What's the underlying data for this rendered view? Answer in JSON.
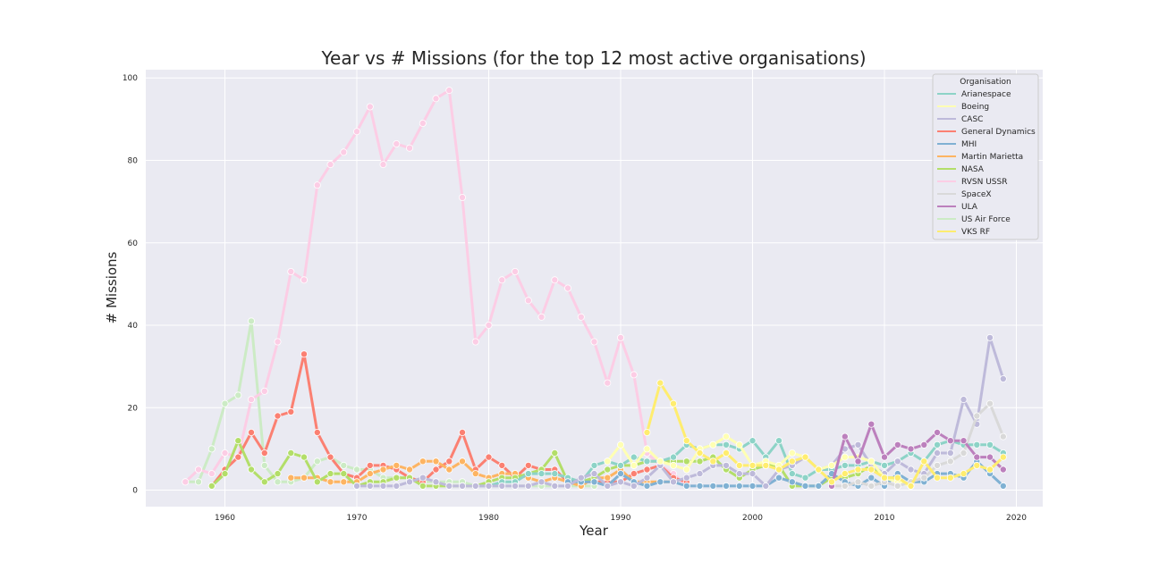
{
  "chart_data": {
    "type": "line",
    "title": "Year vs # Missions (for the top 12 most active organisations)",
    "xlabel": "Year",
    "ylabel": "# Missions",
    "xlim": [
      1954,
      2022
    ],
    "ylim": [
      -4,
      102
    ],
    "xticks": [
      1960,
      1970,
      1980,
      1990,
      2000,
      2010,
      2020
    ],
    "yticks": [
      0,
      20,
      40,
      60,
      80,
      100
    ],
    "grid": true,
    "legend_title": "Organisation",
    "legend_position": "top-right",
    "series": [
      {
        "name": "US Air Force",
        "color": "#ccebc5",
        "x": [
          1957,
          1958,
          1959,
          1960,
          1961,
          1962,
          1963,
          1964,
          1965,
          1966,
          1967,
          1968,
          1969,
          1970,
          1971,
          1972,
          1973,
          1974,
          1975,
          1976,
          1977,
          1978,
          1979,
          1980,
          1981,
          1982,
          1983,
          1984,
          1985,
          1986,
          1987,
          1988
        ],
        "y": [
          2,
          2,
          10,
          21,
          23,
          41,
          6,
          2,
          2,
          3,
          7,
          8,
          6,
          5,
          5,
          3,
          3,
          3,
          2,
          2,
          2,
          2,
          1,
          1,
          1,
          1,
          1,
          1,
          1,
          1,
          1,
          1
        ]
      },
      {
        "name": "RVSN USSR",
        "color": "#fccde5",
        "x": [
          1957,
          1958,
          1959,
          1960,
          1961,
          1962,
          1963,
          1964,
          1965,
          1966,
          1967,
          1968,
          1969,
          1970,
          1971,
          1972,
          1973,
          1974,
          1975,
          1976,
          1977,
          1978,
          1979,
          1980,
          1981,
          1982,
          1983,
          1984,
          1985,
          1986,
          1987,
          1988,
          1989,
          1990,
          1991,
          1992,
          1993,
          1994,
          1995,
          1996,
          1997,
          1998
        ],
        "y": [
          2,
          5,
          4,
          9,
          8,
          22,
          24,
          36,
          53,
          51,
          74,
          79,
          82,
          87,
          93,
          79,
          84,
          83,
          89,
          95,
          97,
          71,
          36,
          40,
          51,
          53,
          46,
          42,
          51,
          49,
          42,
          36,
          26,
          37,
          28,
          9,
          6,
          4,
          1,
          1,
          1,
          1
        ]
      },
      {
        "name": "General Dynamics",
        "color": "#fb8072",
        "x": [
          1959,
          1960,
          1961,
          1962,
          1963,
          1964,
          1965,
          1966,
          1967,
          1968,
          1969,
          1970,
          1971,
          1972,
          1973,
          1974,
          1975,
          1976,
          1977,
          1978,
          1979,
          1980,
          1981,
          1982,
          1983,
          1984,
          1985,
          1986,
          1987,
          1988,
          1989,
          1990,
          1991,
          1992,
          1993,
          1994,
          1995
        ],
        "y": [
          1,
          5,
          8,
          14,
          9,
          18,
          19,
          33,
          14,
          8,
          4,
          3,
          6,
          6,
          5,
          3,
          2,
          5,
          7,
          14,
          5,
          8,
          6,
          3,
          6,
          5,
          5,
          2,
          2,
          2,
          2,
          2,
          4,
          5,
          6,
          3,
          2
        ]
      },
      {
        "name": "Martin Marietta",
        "color": "#fdb462",
        "x": [
          1965,
          1966,
          1967,
          1968,
          1969,
          1970,
          1971,
          1972,
          1973,
          1974,
          1975,
          1976,
          1977,
          1978,
          1979,
          1980,
          1981,
          1982,
          1983,
          1984,
          1985,
          1986,
          1987,
          1988,
          1989,
          1990,
          1991,
          1992,
          1993,
          1994
        ],
        "y": [
          3,
          3,
          3,
          2,
          2,
          2,
          4,
          5,
          6,
          5,
          7,
          7,
          5,
          7,
          4,
          3,
          4,
          4,
          3,
          2,
          3,
          2,
          1,
          3,
          3,
          5,
          2,
          2,
          2,
          2
        ]
      },
      {
        "name": "NASA",
        "color": "#b3de69",
        "x": [
          1959,
          1960,
          1961,
          1962,
          1963,
          1964,
          1965,
          1966,
          1967,
          1968,
          1969,
          1970,
          1971,
          1972,
          1973,
          1974,
          1975,
          1976,
          1977,
          1978,
          1979,
          1980,
          1981,
          1982,
          1983,
          1984,
          1985,
          1986,
          1987,
          1988,
          1989,
          1990,
          1991,
          1992,
          1993,
          1994,
          1995,
          1996,
          1997,
          1998,
          1999,
          2000,
          2001,
          2002,
          2003,
          2004,
          2005,
          2006,
          2007,
          2008,
          2009,
          2010,
          2011
        ],
        "y": [
          1,
          4,
          12,
          5,
          2,
          4,
          9,
          8,
          2,
          4,
          4,
          1,
          2,
          2,
          3,
          3,
          1,
          1,
          1,
          1,
          1,
          2,
          3,
          3,
          4,
          5,
          9,
          2,
          2,
          3,
          5,
          6,
          6,
          7,
          7,
          7,
          7,
          7,
          8,
          5,
          3,
          5,
          6,
          6,
          1,
          1,
          1,
          3,
          3,
          4,
          6,
          3,
          3
        ]
      },
      {
        "name": "Arianespace",
        "color": "#8dd3c7",
        "x": [
          1979,
          1980,
          1981,
          1982,
          1983,
          1984,
          1985,
          1986,
          1987,
          1988,
          1989,
          1990,
          1991,
          1992,
          1993,
          1994,
          1995,
          1996,
          1997,
          1998,
          1999,
          2000,
          2001,
          2002,
          2003,
          2004,
          2005,
          2006,
          2007,
          2008,
          2009,
          2010,
          2011,
          2012,
          2013,
          2014,
          2015,
          2016,
          2017,
          2018,
          2019
        ],
        "y": [
          1,
          1,
          2,
          2,
          4,
          4,
          4,
          3,
          2,
          6,
          7,
          6,
          8,
          7,
          7,
          8,
          11,
          10,
          11,
          11,
          10,
          12,
          8,
          12,
          4,
          3,
          5,
          5,
          6,
          6,
          7,
          6,
          7,
          9,
          7,
          11,
          12,
          11,
          11,
          11,
          9
        ]
      },
      {
        "name": "MHI",
        "color": "#80b1d3",
        "x": [
          1986,
          1987,
          1988,
          1989,
          1990,
          1991,
          1992,
          1993,
          1994,
          1995,
          1996,
          1997,
          1998,
          1999,
          2000,
          2001,
          2002,
          2003,
          2004,
          2005,
          2006,
          2007,
          2008,
          2009,
          2010,
          2011,
          2012,
          2013,
          2014,
          2015,
          2016,
          2017,
          2018,
          2019
        ],
        "y": [
          2,
          2,
          2,
          1,
          4,
          2,
          1,
          2,
          2,
          1,
          1,
          1,
          1,
          1,
          1,
          1,
          3,
          2,
          1,
          1,
          4,
          2,
          1,
          3,
          1,
          4,
          2,
          2,
          4,
          4,
          3,
          7,
          4,
          1
        ]
      },
      {
        "name": "CASC",
        "color": "#bebada",
        "x": [
          1970,
          1971,
          1972,
          1973,
          1974,
          1975,
          1976,
          1977,
          1978,
          1979,
          1980,
          1981,
          1982,
          1983,
          1984,
          1985,
          1986,
          1987,
          1988,
          1989,
          1990,
          1991,
          1992,
          1993,
          1994,
          1995,
          1996,
          1997,
          1998,
          1999,
          2000,
          2001,
          2002,
          2003,
          2004,
          2005,
          2006,
          2007,
          2008,
          2009,
          2010,
          2011,
          2012,
          2013,
          2014,
          2015,
          2016,
          2017,
          2018,
          2019
        ],
        "y": [
          1,
          1,
          1,
          1,
          2,
          3,
          2,
          1,
          1,
          1,
          1,
          1,
          1,
          1,
          2,
          1,
          1,
          3,
          4,
          1,
          2,
          1,
          3,
          6,
          2,
          3,
          4,
          6,
          6,
          4,
          4,
          1,
          5,
          6,
          8,
          5,
          6,
          10,
          11,
          6,
          4,
          7,
          5,
          4,
          9,
          9,
          22,
          16,
          37,
          27
        ]
      },
      {
        "name": "Boeing",
        "color": "#ffffb3",
        "x": [
          1989,
          1990,
          1991,
          1992,
          1993,
          1994,
          1995,
          1996,
          1997,
          1998,
          1999,
          2000,
          2001,
          2002,
          2003,
          2004,
          2005,
          2006,
          2007,
          2008,
          2009,
          2010,
          2011,
          2012
        ],
        "y": [
          7,
          11,
          6,
          10,
          7,
          6,
          5,
          10,
          11,
          13,
          11,
          6,
          7,
          6,
          9,
          8,
          5,
          6,
          8,
          8,
          7,
          3,
          2,
          1
        ]
      },
      {
        "name": "SpaceX",
        "color": "#d9d9d9",
        "x": [
          2006,
          2007,
          2008,
          2009,
          2010,
          2011,
          2012,
          2013,
          2014,
          2015,
          2016,
          2017,
          2018,
          2019
        ],
        "y": [
          1,
          1,
          2,
          1,
          2,
          1,
          2,
          3,
          6,
          7,
          9,
          18,
          21,
          13
        ]
      },
      {
        "name": "ULA",
        "color": "#bc80bd",
        "x": [
          2006,
          2007,
          2008,
          2009,
          2010,
          2011,
          2012,
          2013,
          2014,
          2015,
          2016,
          2017,
          2018,
          2019
        ],
        "y": [
          1,
          13,
          7,
          16,
          8,
          11,
          10,
          11,
          14,
          12,
          12,
          8,
          8,
          5
        ]
      },
      {
        "name": "VKS RF",
        "color": "#ffed6f",
        "x": [
          1992,
          1993,
          1994,
          1995,
          1996,
          1997,
          1998,
          1999,
          2000,
          2001,
          2002,
          2003,
          2004,
          2005,
          2006,
          2007,
          2008,
          2009,
          2010,
          2011,
          2012,
          2013,
          2014,
          2015,
          2016,
          2017,
          2018,
          2019
        ],
        "y": [
          14,
          26,
          21,
          12,
          9,
          7,
          9,
          6,
          6,
          6,
          5,
          7,
          8,
          5,
          2,
          4,
          5,
          5,
          3,
          3,
          1,
          7,
          3,
          3,
          4,
          6,
          5,
          8
        ]
      }
    ],
    "legend_order": [
      "Arianespace",
      "Boeing",
      "CASC",
      "General Dynamics",
      "MHI",
      "Martin Marietta",
      "NASA",
      "RVSN USSR",
      "SpaceX",
      "ULA",
      "US Air Force",
      "VKS RF"
    ]
  }
}
